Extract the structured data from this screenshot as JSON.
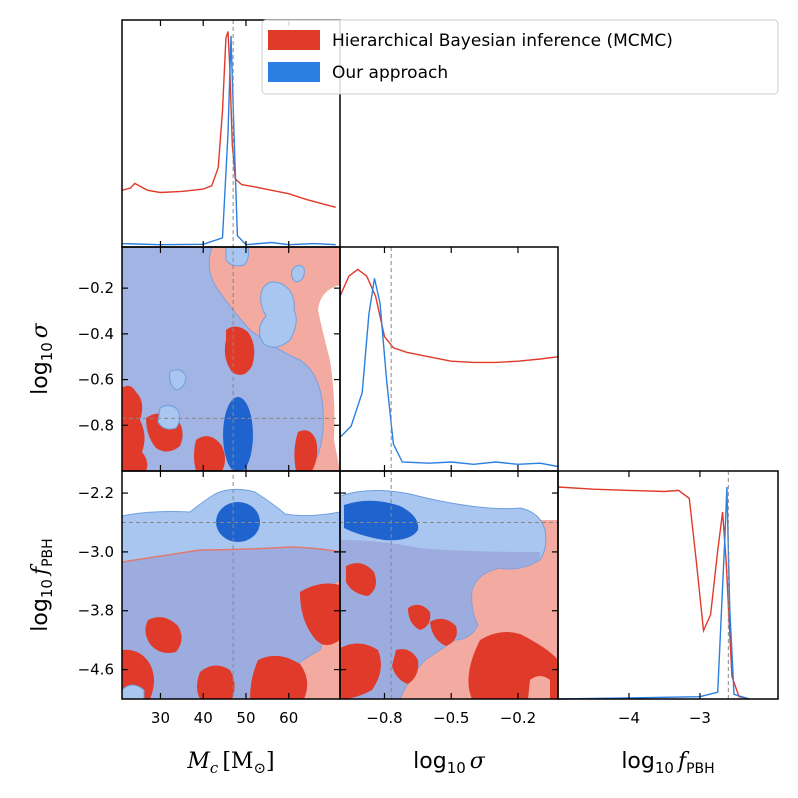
{
  "chart_data": {
    "type": "corner-plot",
    "parameters": [
      {
        "key": "mc",
        "label_main": "M",
        "label_sub": "c",
        "label_unit": "[M",
        "label_unit_sub": "⊙",
        "label_unit_close": "]",
        "range": [
          21,
          72
        ],
        "ticks": [
          30,
          40,
          50,
          60
        ],
        "tick_labels": [
          "30",
          "40",
          "50",
          "60"
        ],
        "truth": 47
      },
      {
        "key": "sigma",
        "label_main": "log",
        "label_sub": "10",
        "label_symbol": "σ",
        "range": [
          -1.0,
          -0.02
        ],
        "ticks": [
          -0.8,
          -0.5,
          -0.2
        ],
        "tick_labels": [
          "−0.8",
          "−0.5",
          "−0.2"
        ],
        "y_ticks": [
          -0.8,
          -0.6,
          -0.4,
          -0.2
        ],
        "y_tick_labels": [
          "−0.8",
          "−0.6",
          "−0.4",
          "−0.2"
        ],
        "truth": -0.77
      },
      {
        "key": "fpbh",
        "label_main": "log",
        "label_sub": "10",
        "label_symbol": "f",
        "label_symbol_sub": "PBH",
        "range": [
          -5.0,
          -1.9
        ],
        "ticks": [
          -4,
          -3
        ],
        "tick_labels": [
          "−4",
          "−3"
        ],
        "y_ticks": [
          -4.6,
          -3.8,
          -3.0,
          -2.2
        ],
        "y_tick_labels": [
          "−4.6",
          "−3.8",
          "−3.0",
          "−2.2"
        ],
        "truth": -2.6
      }
    ],
    "series": [
      {
        "name": "Hierarchical Bayesian inference (MCMC)",
        "color": "#e03a2a",
        "light_color": "#f2aaa1"
      },
      {
        "name": "Our approach",
        "color": "#2a7fe0",
        "light_color": "#a8c6ef"
      }
    ],
    "marginals": {
      "mc": {
        "mcmc": [
          [
            21,
            0.25
          ],
          [
            23,
            0.26
          ],
          [
            24,
            0.28
          ],
          [
            25,
            0.27
          ],
          [
            27,
            0.25
          ],
          [
            30,
            0.24
          ],
          [
            35,
            0.245
          ],
          [
            40,
            0.255
          ],
          [
            42,
            0.27
          ],
          [
            43.5,
            0.35
          ],
          [
            44.5,
            0.6
          ],
          [
            45.3,
            0.92
          ],
          [
            45.8,
            0.95
          ],
          [
            46.2,
            0.8
          ],
          [
            46.8,
            0.45
          ],
          [
            47.5,
            0.3
          ],
          [
            49,
            0.275
          ],
          [
            52,
            0.265
          ],
          [
            56,
            0.25
          ],
          [
            60,
            0.235
          ],
          [
            64,
            0.21
          ],
          [
            68,
            0.19
          ],
          [
            71,
            0.175
          ]
        ],
        "ours": [
          [
            21,
            0.015
          ],
          [
            30,
            0.01
          ],
          [
            40,
            0.012
          ],
          [
            44.5,
            0.04
          ],
          [
            45.8,
            0.5
          ],
          [
            46.5,
            0.93
          ],
          [
            47.2,
            0.5
          ],
          [
            48,
            0.05
          ],
          [
            50,
            0.01
          ],
          [
            56,
            0.02
          ],
          [
            60,
            0.01
          ],
          [
            66,
            0.015
          ],
          [
            71,
            0.01
          ]
        ]
      },
      "sigma": {
        "mcmc": [
          [
            -1.0,
            0.78
          ],
          [
            -0.96,
            0.87
          ],
          [
            -0.92,
            0.9
          ],
          [
            -0.88,
            0.87
          ],
          [
            -0.84,
            0.78
          ],
          [
            -0.8,
            0.6
          ],
          [
            -0.76,
            0.55
          ],
          [
            -0.7,
            0.53
          ],
          [
            -0.6,
            0.51
          ],
          [
            -0.5,
            0.49
          ],
          [
            -0.4,
            0.485
          ],
          [
            -0.3,
            0.485
          ],
          [
            -0.2,
            0.49
          ],
          [
            -0.1,
            0.5
          ],
          [
            -0.02,
            0.51
          ]
        ],
        "ours": [
          [
            -1.0,
            0.15
          ],
          [
            -0.95,
            0.2
          ],
          [
            -0.9,
            0.35
          ],
          [
            -0.87,
            0.7
          ],
          [
            -0.845,
            0.86
          ],
          [
            -0.82,
            0.75
          ],
          [
            -0.79,
            0.4
          ],
          [
            -0.76,
            0.12
          ],
          [
            -0.72,
            0.04
          ],
          [
            -0.6,
            0.035
          ],
          [
            -0.5,
            0.04
          ],
          [
            -0.4,
            0.03
          ],
          [
            -0.3,
            0.04
          ],
          [
            -0.2,
            0.03
          ],
          [
            -0.1,
            0.035
          ],
          [
            -0.02,
            0.02
          ]
        ]
      },
      "fpbh": {
        "mcmc": [
          [
            -5.0,
            0.93
          ],
          [
            -4.5,
            0.92
          ],
          [
            -4.0,
            0.915
          ],
          [
            -3.5,
            0.91
          ],
          [
            -3.3,
            0.915
          ],
          [
            -3.15,
            0.88
          ],
          [
            -3.05,
            0.6
          ],
          [
            -2.95,
            0.3
          ],
          [
            -2.85,
            0.37
          ],
          [
            -2.75,
            0.65
          ],
          [
            -2.68,
            0.82
          ],
          [
            -2.63,
            0.6
          ],
          [
            -2.55,
            0.1
          ],
          [
            -2.45,
            0.01
          ],
          [
            -2.3,
            0.0
          ]
        ],
        "ours": [
          [
            -5.0,
            0.0
          ],
          [
            -4.0,
            0.005
          ],
          [
            -3.0,
            0.01
          ],
          [
            -2.75,
            0.03
          ],
          [
            -2.65,
            0.7
          ],
          [
            -2.62,
            0.93
          ],
          [
            -2.58,
            0.4
          ],
          [
            -2.52,
            0.02
          ],
          [
            -2.3,
            0.0
          ]
        ]
      }
    },
    "legend_position": "top-right"
  }
}
